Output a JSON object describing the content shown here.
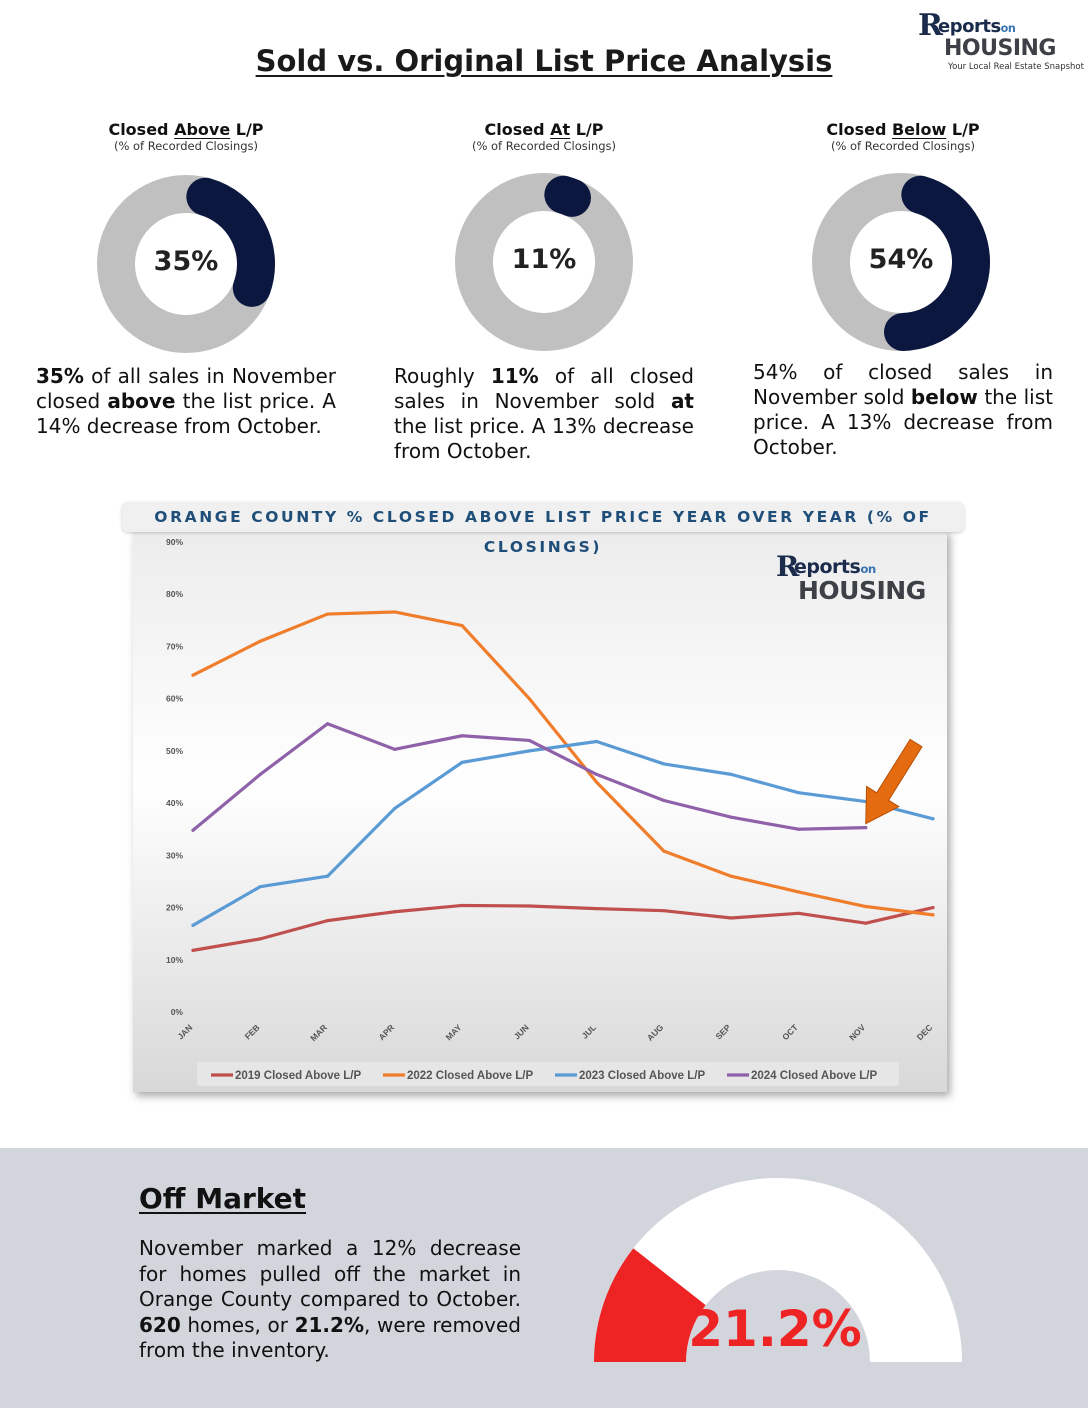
{
  "header": {
    "title": "Sold vs. Original List Price Analysis",
    "logo": {
      "letter": "R",
      "word": "eports",
      "on": "on",
      "housing": "HOUSING",
      "tagline": "Your Local Real Estate Snapshot"
    }
  },
  "colors": {
    "navy": "#0c1740",
    "gray_ring": "#c0c0c0",
    "red": "#ee2424"
  },
  "donuts": [
    {
      "title_pre": "Closed ",
      "title_u": "Above",
      "title_post": " L/P",
      "subtitle": "(% of Recorded Closings)",
      "value": 35,
      "label": "35%",
      "para_html": "<b>35%</b> of all sales in November closed <b>above</b> the list price. A 14% decrease from October."
    },
    {
      "title_pre": "Closed ",
      "title_u": "At",
      "title_post": " L/P",
      "subtitle": "(% of Recorded Closings)",
      "value": 11,
      "label": "11%",
      "para_html": "Roughly <b>11%</b> of all closed sales in November sold <b>at</b> the list price. A 13% decrease from October."
    },
    {
      "title_pre": "Closed ",
      "title_u": "Below",
      "title_post": " L/P",
      "subtitle": "(% of Recorded Closings)",
      "value": 54,
      "label": "54%",
      "para_html": "54% of closed sales in November sold <b>below</b> the list price. A 13% decrease from October."
    }
  ],
  "chart_data": {
    "type": "line",
    "title": "ORANGE COUNTY % CLOSED ABOVE LIST PRICE YEAR OVER YEAR (% OF CLOSINGS)",
    "categories": [
      "JAN",
      "FEB",
      "MAR",
      "APR",
      "MAY",
      "JUN",
      "JUL",
      "AUG",
      "SEP",
      "OCT",
      "NOV",
      "DEC"
    ],
    "ylim": [
      0,
      90
    ],
    "yticks": [
      0,
      10,
      20,
      30,
      40,
      50,
      60,
      70,
      80,
      90
    ],
    "ytick_labels": [
      "0%",
      "10%",
      "20%",
      "30%",
      "40%",
      "50%",
      "60%",
      "70%",
      "80%",
      "90%"
    ],
    "grid": false,
    "legend_position": "bottom",
    "series": [
      {
        "name": "2019 Closed Above L/P",
        "color": "#c0504d",
        "values": [
          11.8,
          14.0,
          17.5,
          19.2,
          20.4,
          20.3,
          19.8,
          19.4,
          18.0,
          18.9,
          17.0,
          20.0
        ]
      },
      {
        "name": "2022 Closed Above L/P",
        "color": "#f07d2b",
        "values": [
          64.5,
          71.0,
          76.2,
          76.6,
          74.0,
          60.0,
          44.0,
          30.8,
          26.0,
          23.0,
          20.2,
          18.6
        ]
      },
      {
        "name": "2023 Closed Above L/P",
        "color": "#5b9bd5",
        "values": [
          16.6,
          24.0,
          26.0,
          39.0,
          47.8,
          50.0,
          51.8,
          47.5,
          45.5,
          42.0,
          40.3,
          37.0
        ]
      },
      {
        "name": "2024 Closed Above L/P",
        "color": "#8e61a9",
        "values": [
          34.8,
          45.5,
          55.2,
          50.3,
          52.9,
          52.0,
          45.5,
          40.5,
          37.3,
          35.0,
          35.3,
          null
        ]
      }
    ],
    "annotation": {
      "type": "arrow",
      "color": "#e46b10",
      "points_to": "NOV"
    },
    "logo": {
      "letter": "R",
      "word": "eports",
      "on": "on",
      "housing": "HOUSING"
    }
  },
  "off_market": {
    "title": "Off Market",
    "para_html": "November marked a 12% decrease for homes pulled off the market in Orange County compared to October. <b>620</b> homes, or <b>21.2%</b>, were removed from the inventory.",
    "value": 21.2,
    "label": "21.2%"
  }
}
